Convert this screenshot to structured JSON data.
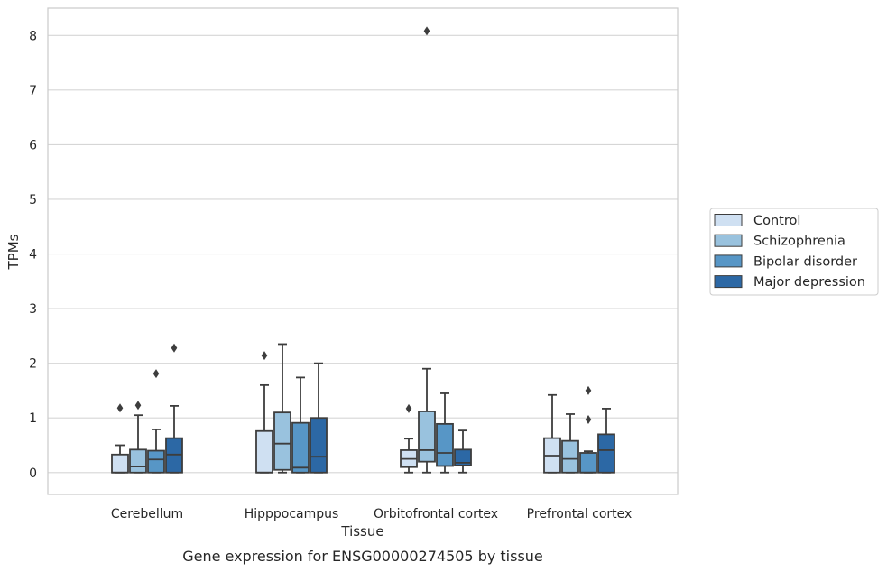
{
  "chart_data": {
    "type": "box",
    "title": "",
    "caption": "Gene expression for ENSG00000274505 by tissue",
    "xlabel": "Tissue",
    "ylabel": "TPMs",
    "ylim": [
      -0.4,
      8.5
    ],
    "yticks": [
      "0",
      "1",
      "2",
      "3",
      "4",
      "5",
      "6",
      "7",
      "8"
    ],
    "categories": [
      "Cerebellum",
      "Hipppocampus",
      "Orbitofrontal cortex",
      "Prefrontal cortex"
    ],
    "grid": "horizontal",
    "legend_position": "right",
    "series": [
      {
        "name": "Control",
        "color": "#cfe0f2",
        "boxes": [
          {
            "whislo": 0.0,
            "q1": 0.0,
            "med": 0.0,
            "q3": 0.33,
            "whishi": 0.5,
            "fliers": [
              1.18
            ]
          },
          {
            "whislo": 0.0,
            "q1": 0.0,
            "med": 0.0,
            "q3": 0.76,
            "whishi": 1.6,
            "fliers": [
              2.14
            ]
          },
          {
            "whislo": 0.0,
            "q1": 0.1,
            "med": 0.25,
            "q3": 0.41,
            "whishi": 0.62,
            "fliers": [
              1.17
            ]
          },
          {
            "whislo": 0.0,
            "q1": 0.0,
            "med": 0.31,
            "q3": 0.63,
            "whishi": 1.42,
            "fliers": []
          }
        ]
      },
      {
        "name": "Schizophrenia",
        "color": "#99c2de",
        "boxes": [
          {
            "whislo": 0.0,
            "q1": 0.0,
            "med": 0.11,
            "q3": 0.42,
            "whishi": 1.05,
            "fliers": [
              1.23
            ]
          },
          {
            "whislo": 0.0,
            "q1": 0.05,
            "med": 0.53,
            "q3": 1.1,
            "whishi": 2.35,
            "fliers": []
          },
          {
            "whislo": 0.0,
            "q1": 0.2,
            "med": 0.41,
            "q3": 1.12,
            "whishi": 1.9,
            "fliers": [
              8.08
            ]
          },
          {
            "whislo": 0.0,
            "q1": 0.0,
            "med": 0.25,
            "q3": 0.58,
            "whishi": 1.07,
            "fliers": []
          }
        ]
      },
      {
        "name": "Bipolar disorder",
        "color": "#5796c6",
        "boxes": [
          {
            "whislo": 0.0,
            "q1": 0.0,
            "med": 0.24,
            "q3": 0.4,
            "whishi": 0.79,
            "fliers": [
              1.81
            ]
          },
          {
            "whislo": 0.0,
            "q1": 0.0,
            "med": 0.09,
            "q3": 0.91,
            "whishi": 1.74,
            "fliers": []
          },
          {
            "whislo": 0.0,
            "q1": 0.12,
            "med": 0.36,
            "q3": 0.89,
            "whishi": 1.45,
            "fliers": []
          },
          {
            "whislo": 0.0,
            "q1": 0.0,
            "med": 0.0,
            "q3": 0.36,
            "whishi": 0.39,
            "fliers": [
              0.97,
              1.5
            ]
          }
        ]
      },
      {
        "name": "Major depression",
        "color": "#2c68a5",
        "boxes": [
          {
            "whislo": 0.0,
            "q1": 0.0,
            "med": 0.33,
            "q3": 0.63,
            "whishi": 1.22,
            "fliers": [
              2.28
            ]
          },
          {
            "whislo": 0.0,
            "q1": 0.0,
            "med": 0.29,
            "q3": 1.0,
            "whishi": 2.0,
            "fliers": []
          },
          {
            "whislo": 0.0,
            "q1": 0.13,
            "med": 0.18,
            "q3": 0.42,
            "whishi": 0.77,
            "fliers": []
          },
          {
            "whislo": 0.0,
            "q1": 0.0,
            "med": 0.41,
            "q3": 0.7,
            "whishi": 1.17,
            "fliers": []
          }
        ]
      }
    ]
  }
}
